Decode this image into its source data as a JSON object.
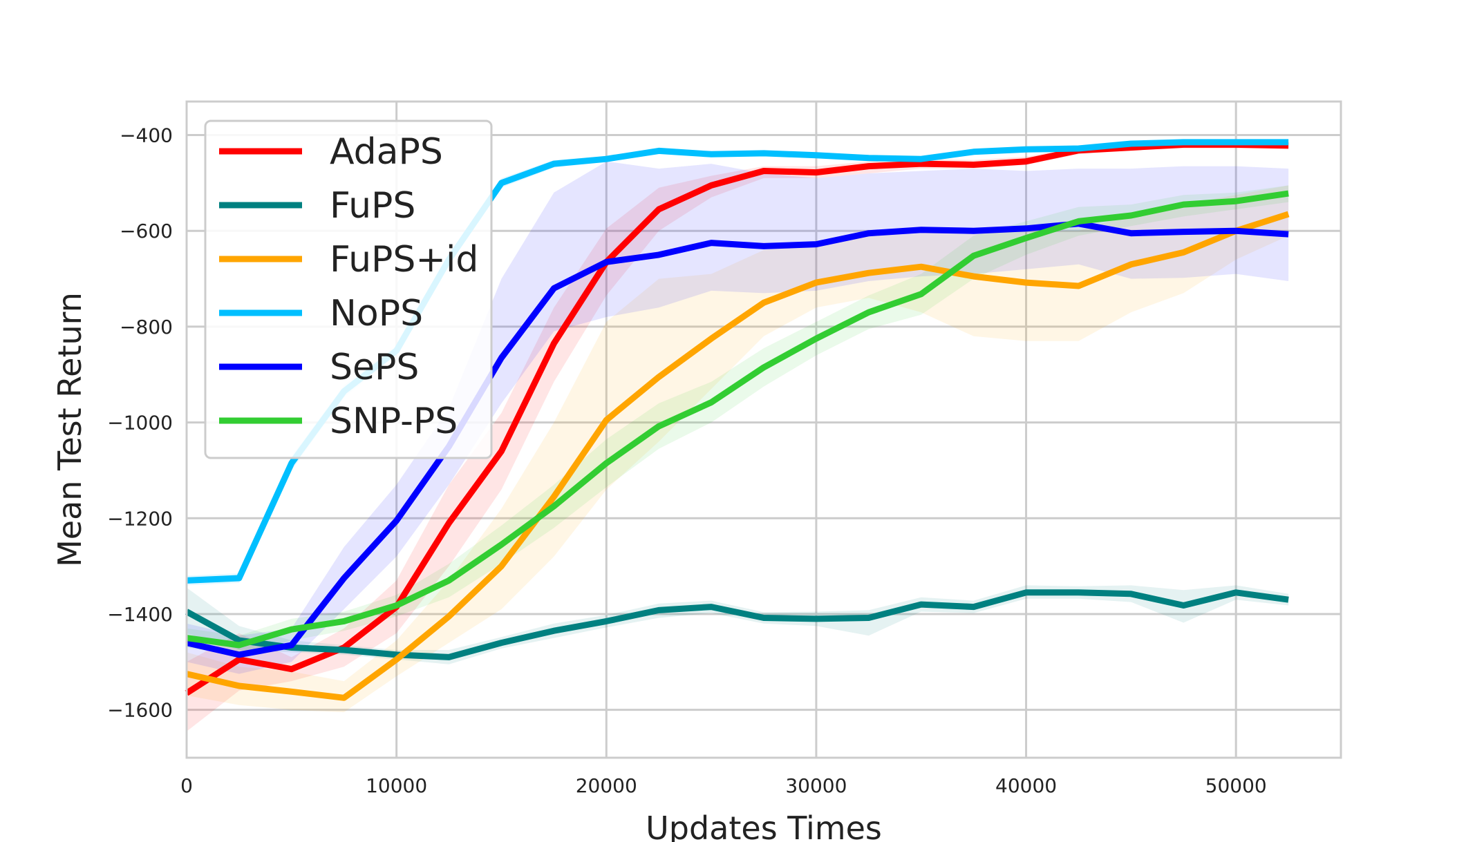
{
  "chart_data": {
    "type": "line",
    "title": "",
    "xlabel": "Updates Times",
    "ylabel": "Mean Test Return",
    "xlim": [
      0,
      55000
    ],
    "ylim": [
      -1700,
      -330
    ],
    "xticks": [
      0,
      10000,
      20000,
      30000,
      40000,
      50000
    ],
    "xtick_labels": [
      "0",
      "10000",
      "20000",
      "30000",
      "40000",
      "50000"
    ],
    "yticks": [
      -400,
      -600,
      -800,
      -1000,
      -1200,
      -1400,
      -1600
    ],
    "ytick_labels": [
      "−400",
      "−600",
      "−800",
      "−1000",
      "−1200",
      "−1400",
      "−1600"
    ],
    "grid": true,
    "legend_position": "top-left",
    "x": [
      0,
      2500,
      5000,
      7500,
      10000,
      12500,
      15000,
      17500,
      20000,
      22500,
      25000,
      27500,
      30000,
      32500,
      35000,
      37500,
      40000,
      42500,
      45000,
      47500,
      50000,
      52500
    ],
    "series": [
      {
        "name": "AdaPS",
        "color": "#ff0000",
        "values": [
          -1565,
          -1495,
          -1515,
          -1470,
          -1385,
          -1210,
          -1060,
          -835,
          -665,
          -555,
          -505,
          -475,
          -478,
          -465,
          -460,
          -462,
          -455,
          -432,
          -426,
          -420,
          -420,
          -422
        ],
        "lower": [
          -1645,
          -1560,
          -1540,
          -1510,
          -1440,
          -1300,
          -1140,
          -915,
          -735,
          -600,
          -530,
          -490,
          -490,
          -480,
          -470,
          -470,
          -462,
          -440,
          -432,
          -428,
          -428,
          -430
        ],
        "upper": [
          -1500,
          -1440,
          -1490,
          -1430,
          -1330,
          -1130,
          -980,
          -760,
          -595,
          -510,
          -485,
          -465,
          -465,
          -455,
          -450,
          -452,
          -445,
          -425,
          -420,
          -414,
          -414,
          -416
        ]
      },
      {
        "name": "FuPS",
        "color": "#008080",
        "values": [
          -1395,
          -1455,
          -1470,
          -1475,
          -1485,
          -1490,
          -1460,
          -1435,
          -1415,
          -1392,
          -1385,
          -1408,
          -1410,
          -1408,
          -1380,
          -1385,
          -1355,
          -1355,
          -1358,
          -1382,
          -1355,
          -1370
        ],
        "lower": [
          -1440,
          -1475,
          -1480,
          -1485,
          -1495,
          -1505,
          -1472,
          -1450,
          -1428,
          -1408,
          -1398,
          -1420,
          -1425,
          -1445,
          -1395,
          -1398,
          -1368,
          -1368,
          -1375,
          -1418,
          -1370,
          -1382
        ],
        "upper": [
          -1345,
          -1425,
          -1455,
          -1465,
          -1475,
          -1475,
          -1448,
          -1420,
          -1402,
          -1378,
          -1372,
          -1396,
          -1395,
          -1392,
          -1365,
          -1372,
          -1340,
          -1342,
          -1340,
          -1350,
          -1340,
          -1358
        ]
      },
      {
        "name": "FuPS+id",
        "color": "#ffa500",
        "values": [
          -1525,
          -1550,
          -1562,
          -1575,
          -1495,
          -1405,
          -1300,
          -1155,
          -995,
          -905,
          -825,
          -750,
          -708,
          -688,
          -675,
          -695,
          -708,
          -715,
          -670,
          -645,
          -600,
          -565
        ],
        "lower": [
          -1570,
          -1590,
          -1600,
          -1605,
          -1530,
          -1460,
          -1390,
          -1280,
          -1140,
          -1040,
          -930,
          -820,
          -760,
          -740,
          -770,
          -820,
          -830,
          -830,
          -770,
          -730,
          -660,
          -610
        ],
        "upper": [
          -1480,
          -1510,
          -1520,
          -1540,
          -1455,
          -1330,
          -1180,
          -1000,
          -790,
          -700,
          -690,
          -640,
          -625,
          -610,
          -605,
          -600,
          -600,
          -600,
          -565,
          -545,
          -525,
          -505
        ]
      },
      {
        "name": "NoPS",
        "color": "#00bfff",
        "values": [
          -1330,
          -1325,
          -1085,
          -935,
          -850,
          -660,
          -500,
          -460,
          -450,
          -433,
          -440,
          -438,
          -442,
          -448,
          -450,
          -435,
          -430,
          -428,
          -418,
          -415,
          -415,
          -415
        ],
        "lower": [
          -1340,
          -1335,
          -1100,
          -948,
          -860,
          -672,
          -510,
          -468,
          -456,
          -440,
          -446,
          -444,
          -448,
          -454,
          -456,
          -441,
          -436,
          -434,
          -424,
          -421,
          -421,
          -421
        ],
        "upper": [
          -1320,
          -1315,
          -1070,
          -922,
          -840,
          -648,
          -490,
          -452,
          -444,
          -426,
          -434,
          -432,
          -436,
          -442,
          -444,
          -429,
          -424,
          -422,
          -412,
          -409,
          -409,
          -409
        ]
      },
      {
        "name": "SePS",
        "color": "#0000ff",
        "values": [
          -1460,
          -1485,
          -1465,
          -1325,
          -1205,
          -1050,
          -865,
          -720,
          -665,
          -650,
          -625,
          -632,
          -628,
          -605,
          -598,
          -600,
          -595,
          -585,
          -605,
          -602,
          -600,
          -607
        ],
        "lower": [
          -1500,
          -1525,
          -1500,
          -1390,
          -1280,
          -1130,
          -960,
          -810,
          -780,
          -760,
          -725,
          -730,
          -725,
          -705,
          -695,
          -690,
          -680,
          -670,
          -700,
          -698,
          -690,
          -705
        ],
        "upper": [
          -1420,
          -1445,
          -1430,
          -1260,
          -1130,
          -970,
          -700,
          -520,
          -455,
          -470,
          -460,
          -480,
          -490,
          -480,
          -475,
          -470,
          -475,
          -470,
          -470,
          -465,
          -465,
          -470
        ]
      },
      {
        "name": "SNP-PS",
        "color": "#32cd32",
        "values": [
          -1450,
          -1465,
          -1432,
          -1415,
          -1382,
          -1330,
          -1255,
          -1175,
          -1085,
          -1008,
          -958,
          -885,
          -825,
          -770,
          -732,
          -652,
          -615,
          -580,
          -568,
          -545,
          -538,
          -522
        ],
        "lower": [
          -1470,
          -1485,
          -1455,
          -1435,
          -1405,
          -1365,
          -1295,
          -1220,
          -1135,
          -1055,
          -1000,
          -925,
          -860,
          -805,
          -775,
          -700,
          -650,
          -610,
          -590,
          -570,
          -555,
          -540
        ],
        "upper": [
          -1430,
          -1445,
          -1410,
          -1395,
          -1360,
          -1295,
          -1215,
          -1130,
          -1035,
          -960,
          -915,
          -845,
          -790,
          -735,
          -690,
          -610,
          -580,
          -550,
          -545,
          -525,
          -520,
          -505
        ]
      }
    ]
  }
}
